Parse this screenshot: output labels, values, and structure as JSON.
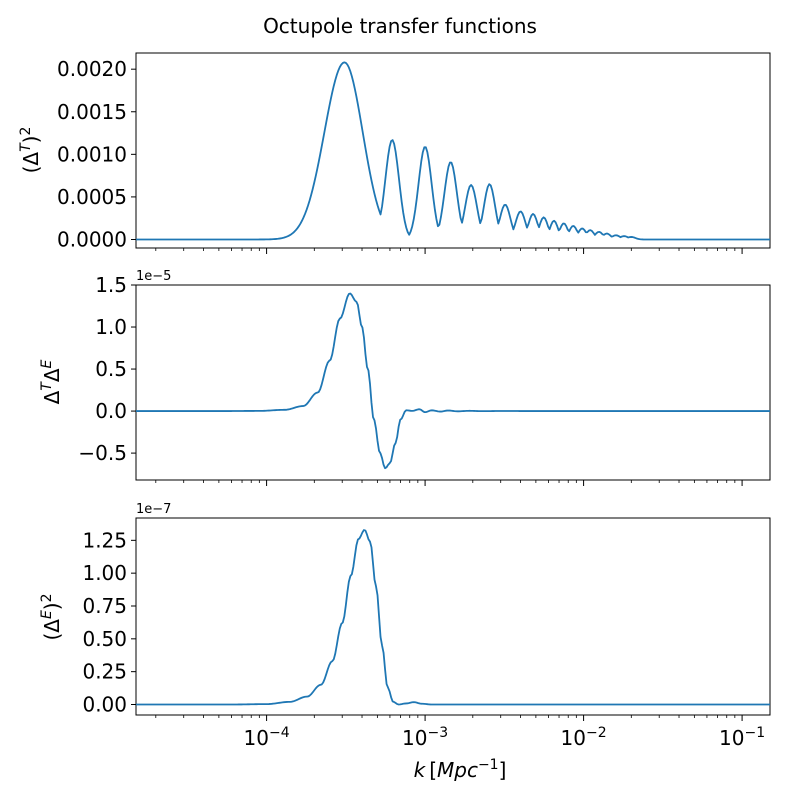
{
  "figure": {
    "title": "Octupole transfer functions",
    "line_color": "#1f77b4"
  },
  "chart_data": [
    {
      "type": "line",
      "xscale": "log",
      "xlim": [
        1.5e-05,
        0.15
      ],
      "ylim": [
        -0.0001,
        0.00219
      ],
      "ylabel": "(Δ^T)^2",
      "yticks": [
        0,
        0.0005,
        0.001,
        0.0015,
        0.002
      ],
      "ytick_labels": [
        "0.0000",
        "0.0005",
        "0.0010",
        "0.0015",
        "0.0020"
      ],
      "offset_text": "",
      "model": {
        "kind": "osc",
        "peaks": [
          [
            0.00031,
            0.00208
          ],
          [
            0.00062,
            0.00117
          ],
          [
            0.001,
            0.00109
          ],
          [
            0.00145,
            0.00091
          ],
          [
            0.00195,
            0.00064
          ],
          [
            0.00255,
            0.00065
          ],
          [
            0.0032,
            0.00041
          ],
          [
            0.004,
            0.00033
          ],
          [
            0.0048,
            0.0003
          ],
          [
            0.0056,
            0.00026
          ],
          [
            0.0065,
            0.00022
          ],
          [
            0.0075,
            0.00019
          ],
          [
            0.0086,
            0.00016
          ],
          [
            0.0098,
            0.00013
          ],
          [
            0.011,
            0.00011
          ],
          [
            0.0125,
            9e-05
          ],
          [
            0.014,
            7e-05
          ],
          [
            0.016,
            5e-05
          ],
          [
            0.018,
            4e-05
          ],
          [
            0.02,
            3e-05
          ]
        ]
      }
    },
    {
      "type": "line",
      "xscale": "log",
      "xlim": [
        1.5e-05,
        0.15
      ],
      "ylim": [
        -8.2e-06,
        1.5e-05
      ],
      "ylabel": "Δ^TΔ^E",
      "yticks": [
        -5e-06,
        0,
        5e-06,
        1e-05,
        1.5e-05
      ],
      "ytick_labels": [
        "−0.5",
        "0.0",
        "0.5",
        "1.0",
        "1.5"
      ],
      "offset_text": "1e−5",
      "model": {
        "kind": "te",
        "points": [
          [
            1.5e-05,
            0
          ],
          [
            5e-05,
            0
          ],
          [
            9e-05,
            2e-08
          ],
          [
            0.00013,
            1.5e-07
          ],
          [
            0.00017,
            6e-07
          ],
          [
            0.00021,
            2.2e-06
          ],
          [
            0.00025,
            6e-06
          ],
          [
            0.00029,
            1.1e-05
          ],
          [
            0.000335,
            1.4e-05
          ],
          [
            0.00037,
            1.3e-05
          ],
          [
            0.0004,
            1e-05
          ],
          [
            0.000435,
            5e-06
          ],
          [
            0.000475,
            -1e-06
          ],
          [
            0.00052,
            -5e-06
          ],
          [
            0.00056,
            -6.8e-06
          ],
          [
            0.0006,
            -6.2e-06
          ],
          [
            0.00065,
            -3.8e-06
          ],
          [
            0.0007,
            -1e-06
          ],
          [
            0.00076,
            1e-07
          ],
          [
            0.00083,
            2e-08
          ],
          [
            0.00092,
            2.2e-07
          ],
          [
            0.001,
            -1.3e-07
          ],
          [
            0.0011,
            9e-08
          ],
          [
            0.00125,
            -6e-08
          ],
          [
            0.0014,
            7e-08
          ],
          [
            0.0016,
            -3e-08
          ],
          [
            0.0019,
            3e-08
          ],
          [
            0.0023,
            -1e-08
          ],
          [
            0.003,
            1e-08
          ],
          [
            0.005,
            0
          ],
          [
            0.15,
            0
          ]
        ]
      }
    },
    {
      "type": "line",
      "xscale": "log",
      "xlim": [
        1.5e-05,
        0.15
      ],
      "ylim": [
        -8e-09,
        1.42e-07
      ],
      "ylabel": "(Δ^E)^2",
      "yticks": [
        0,
        2.5e-08,
        5e-08,
        7.5e-08,
        1e-07,
        1.25e-07
      ],
      "ytick_labels": [
        "0.00",
        "0.25",
        "0.50",
        "0.75",
        "1.00",
        "1.25"
      ],
      "offset_text": "1e−7",
      "xticks": [
        0.0001,
        0.001,
        0.01,
        0.1
      ],
      "xtick_labels": [
        [
          "10",
          "−4"
        ],
        [
          "10",
          "−3"
        ],
        [
          "10",
          "−2"
        ],
        [
          "10",
          "−1"
        ]
      ],
      "xlabel": "k [Mpc^{-1}]",
      "model": {
        "kind": "ee",
        "points": [
          [
            1.5e-05,
            0
          ],
          [
            6e-05,
            0
          ],
          [
            0.0001,
            3e-10
          ],
          [
            0.00014,
            2e-09
          ],
          [
            0.00018,
            6e-09
          ],
          [
            0.00022,
            1.5e-08
          ],
          [
            0.00026,
            3.3e-08
          ],
          [
            0.0003,
            6.2e-08
          ],
          [
            0.00034,
            9.8e-08
          ],
          [
            0.00038,
            1.26e-07
          ],
          [
            0.000415,
            1.33e-07
          ],
          [
            0.00045,
            1.24e-07
          ],
          [
            0.00049,
            9e-08
          ],
          [
            0.000535,
            4.5e-08
          ],
          [
            0.00058,
            1.3e-08
          ],
          [
            0.00063,
            2e-09
          ],
          [
            0.00068,
            0
          ],
          [
            0.00076,
            8e-10
          ],
          [
            0.00085,
            1.8e-09
          ],
          [
            0.00095,
            6e-10
          ],
          [
            0.0011,
            0
          ],
          [
            0.15,
            0
          ]
        ]
      }
    }
  ],
  "x_axis": {
    "label_k": "k",
    "label_unit_open": "[",
    "label_unit": "Mpc",
    "label_exp": "−1",
    "label_unit_close": "]"
  },
  "y_labels": [
    {
      "open": "(",
      "base": "Δ",
      "sup1": "T",
      "close": ")",
      "sup2": "2"
    },
    {
      "base1": "Δ",
      "sup1": "T",
      "base2": "Δ",
      "sup2": "E"
    },
    {
      "open": "(",
      "base": "Δ",
      "sup1": "E",
      "close": ")",
      "sup2": "2"
    }
  ]
}
